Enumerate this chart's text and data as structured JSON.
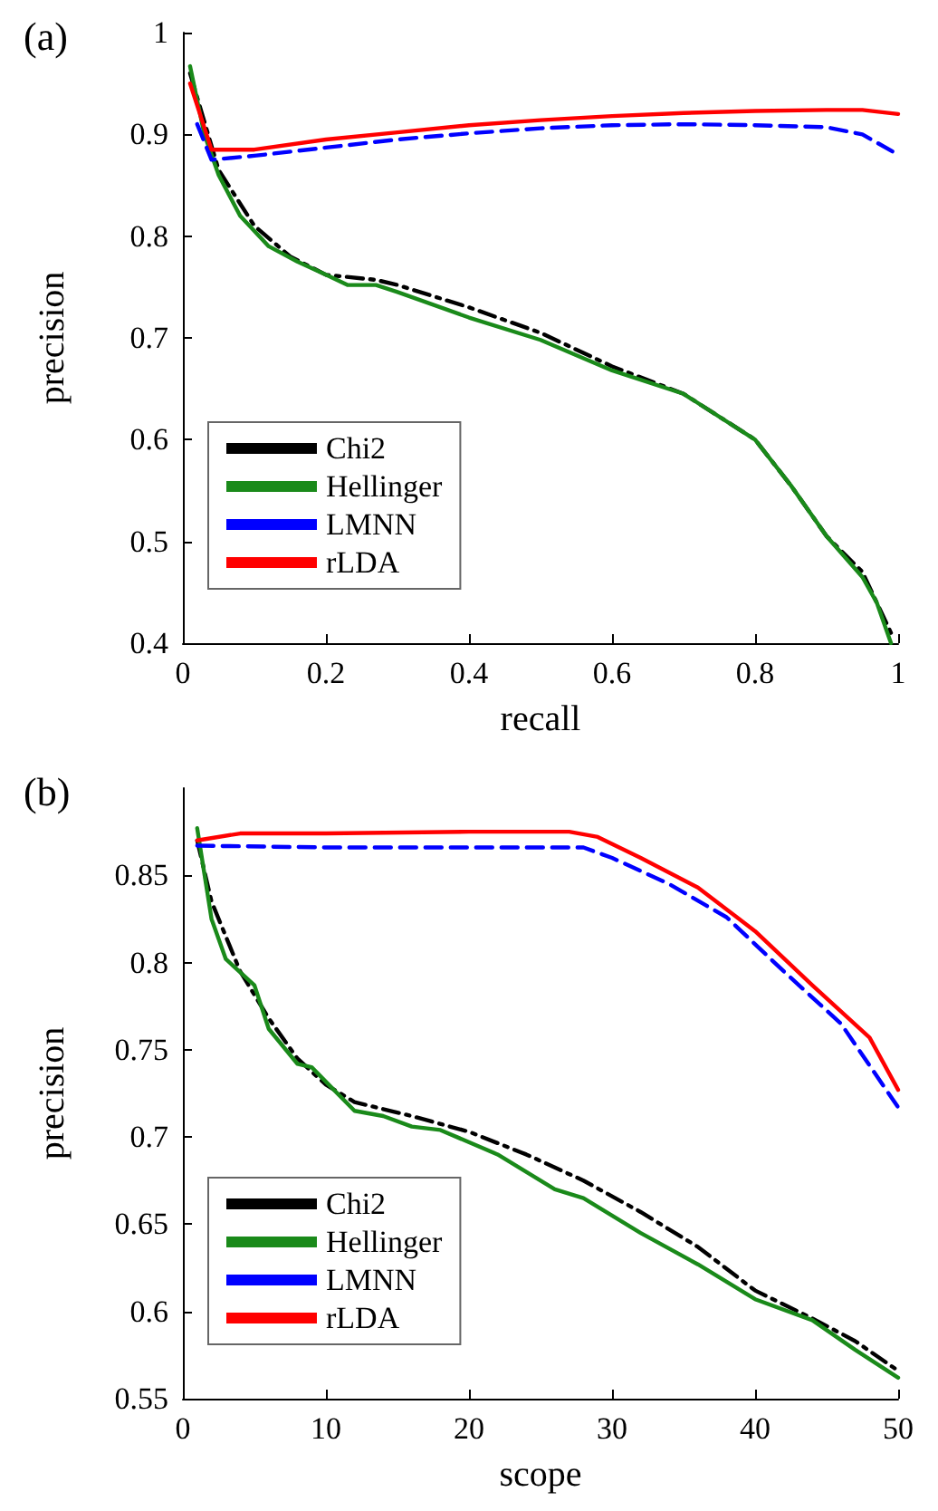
{
  "chart_data": [
    {
      "type": "line",
      "title": "(a)",
      "xlabel": "recall",
      "ylabel": "precision",
      "xlim": [
        0,
        1
      ],
      "ylim": [
        0.4,
        1
      ],
      "xticks": [
        0,
        0.2,
        0.4,
        0.6,
        0.8,
        1
      ],
      "yticks": [
        0.4,
        0.5,
        0.6,
        0.7,
        0.8,
        0.9,
        1
      ],
      "grid": false,
      "legend": "bottom left",
      "marker": "none",
      "series": [
        {
          "name": "Chi2",
          "color": "#000000",
          "line_style": "dashdot",
          "x": [
            0.01,
            0.05,
            0.1,
            0.15,
            0.2,
            0.27,
            0.3,
            0.4,
            0.5,
            0.6,
            0.7,
            0.8,
            0.85,
            0.9,
            0.95,
            0.99
          ],
          "values": [
            0.96,
            0.865,
            0.81,
            0.78,
            0.762,
            0.757,
            0.752,
            0.73,
            0.705,
            0.672,
            0.645,
            0.6,
            0.555,
            0.505,
            0.47,
            0.41
          ]
        },
        {
          "name": "Hellinger",
          "color": "#1a8a1a",
          "line_style": "solid",
          "x": [
            0.01,
            0.03,
            0.05,
            0.08,
            0.12,
            0.16,
            0.2,
            0.23,
            0.27,
            0.3,
            0.4,
            0.5,
            0.6,
            0.7,
            0.8,
            0.85,
            0.9,
            0.95,
            0.97,
            0.99
          ],
          "values": [
            0.967,
            0.9,
            0.86,
            0.82,
            0.79,
            0.775,
            0.762,
            0.752,
            0.752,
            0.745,
            0.72,
            0.698,
            0.668,
            0.645,
            0.6,
            0.555,
            0.505,
            0.465,
            0.44,
            0.4
          ]
        },
        {
          "name": "LMNN",
          "color": "#0000ff",
          "line_style": "dashed",
          "x": [
            0.02,
            0.04,
            0.1,
            0.2,
            0.3,
            0.4,
            0.5,
            0.6,
            0.7,
            0.8,
            0.9,
            0.95,
            1
          ],
          "values": [
            0.91,
            0.875,
            0.879,
            0.887,
            0.895,
            0.901,
            0.906,
            0.909,
            0.91,
            0.909,
            0.907,
            0.9,
            0.88
          ]
        },
        {
          "name": "rLDA",
          "color": "#ff0000",
          "line_style": "solid",
          "x": [
            0.01,
            0.04,
            0.1,
            0.2,
            0.3,
            0.4,
            0.5,
            0.6,
            0.7,
            0.8,
            0.9,
            0.95,
            1
          ],
          "values": [
            0.95,
            0.885,
            0.885,
            0.895,
            0.902,
            0.909,
            0.914,
            0.918,
            0.921,
            0.923,
            0.924,
            0.924,
            0.92
          ]
        }
      ]
    },
    {
      "type": "line",
      "title": "(b)",
      "xlabel": "scope",
      "ylabel": "precision",
      "xlim": [
        0,
        50
      ],
      "ylim": [
        0.55,
        0.9
      ],
      "xticks": [
        0,
        10,
        20,
        30,
        40,
        50
      ],
      "yticks": [
        0.55,
        0.6,
        0.65,
        0.7,
        0.75,
        0.8,
        0.85
      ],
      "grid": false,
      "legend": "bottom left",
      "marker": "none",
      "series": [
        {
          "name": "Chi2",
          "color": "#000000",
          "line_style": "dashdot",
          "x": [
            1,
            2,
            4,
            6,
            8,
            10,
            12,
            16,
            20,
            24,
            28,
            32,
            36,
            40,
            44,
            47,
            50
          ],
          "values": [
            0.87,
            0.835,
            0.795,
            0.768,
            0.745,
            0.73,
            0.72,
            0.712,
            0.703,
            0.69,
            0.675,
            0.657,
            0.637,
            0.612,
            0.596,
            0.583,
            0.566
          ]
        },
        {
          "name": "Hellinger",
          "color": "#1a8a1a",
          "line_style": "solid",
          "x": [
            1,
            2,
            3,
            5,
            6,
            8,
            9,
            12,
            14,
            16,
            18,
            22,
            26,
            28,
            32,
            36,
            40,
            44,
            47,
            50
          ],
          "values": [
            0.877,
            0.825,
            0.802,
            0.787,
            0.762,
            0.742,
            0.74,
            0.715,
            0.712,
            0.706,
            0.704,
            0.69,
            0.67,
            0.665,
            0.645,
            0.627,
            0.607,
            0.595,
            0.578,
            0.562
          ]
        },
        {
          "name": "LMNN",
          "color": "#0000ff",
          "line_style": "dashed",
          "x": [
            1,
            10,
            20,
            28,
            30,
            34,
            38,
            42,
            46,
            50
          ],
          "values": [
            0.867,
            0.866,
            0.866,
            0.866,
            0.86,
            0.845,
            0.826,
            0.795,
            0.765,
            0.717
          ]
        },
        {
          "name": "rLDA",
          "color": "#ff0000",
          "line_style": "solid",
          "x": [
            1,
            4,
            10,
            20,
            27,
            29,
            32,
            36,
            40,
            44,
            48,
            50
          ],
          "values": [
            0.87,
            0.874,
            0.874,
            0.875,
            0.875,
            0.872,
            0.86,
            0.843,
            0.818,
            0.787,
            0.757,
            0.727
          ]
        }
      ]
    }
  ]
}
